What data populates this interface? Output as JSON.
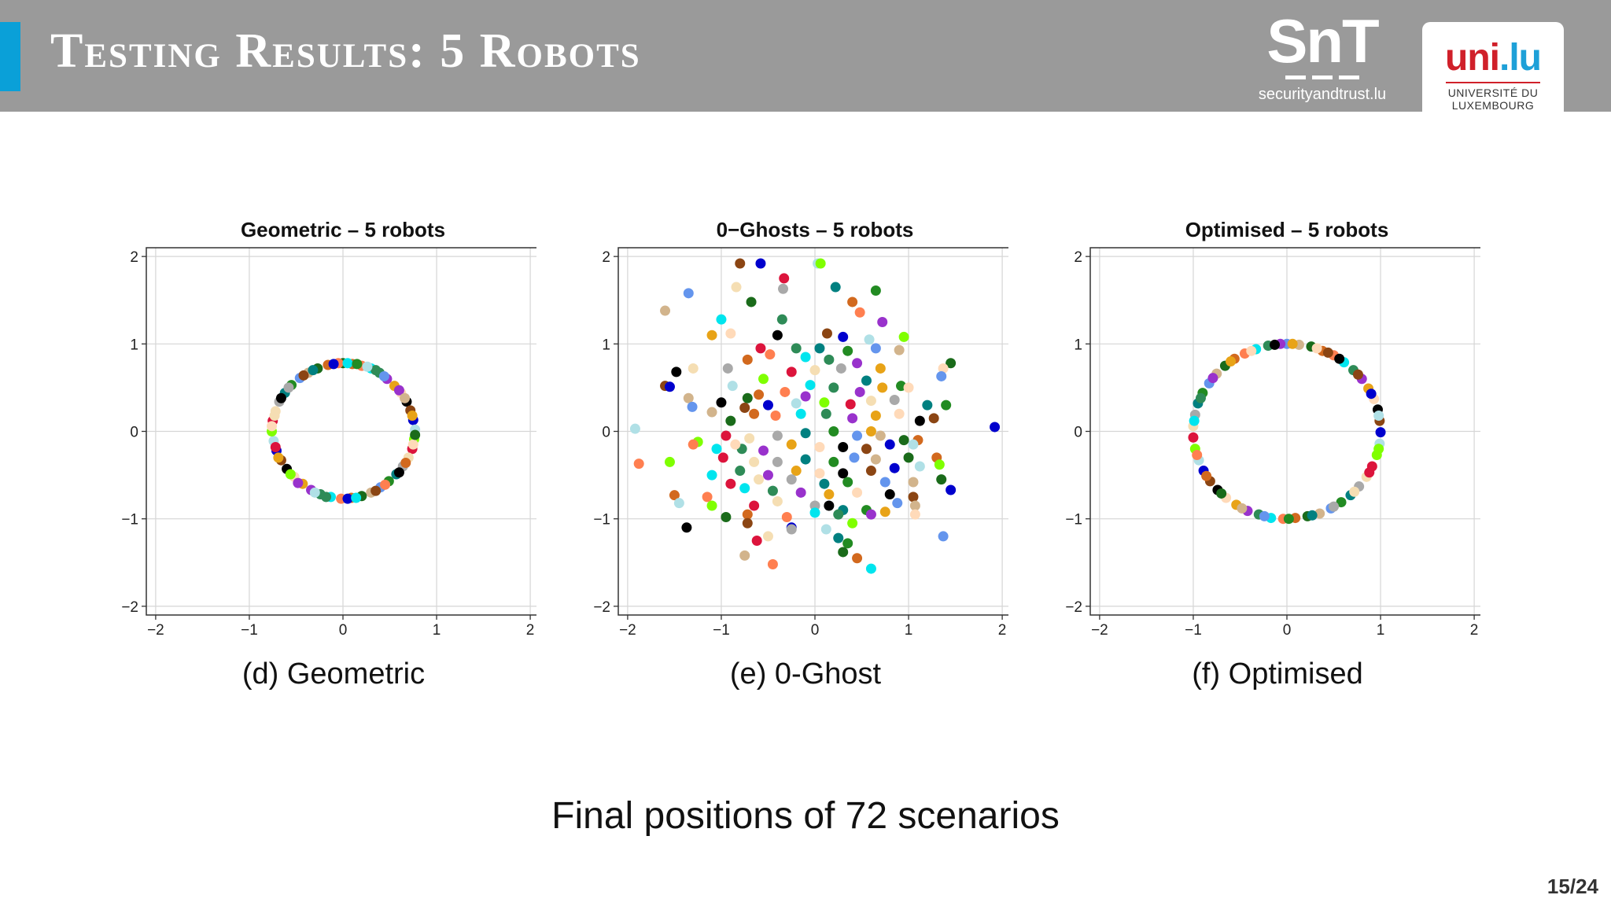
{
  "header": {
    "title": "Testing Results: 5 Robots",
    "snt_logo": "SnT",
    "snt_url": "securityandtrust.lu",
    "uni_logo_a": "uni",
    "uni_logo_b": ".lu",
    "uni_name_1": "UNIVERSITÉ DU",
    "uni_name_2": "LUXEMBOURG"
  },
  "captions": {
    "d": "(d)  Geometric",
    "e": "(e)  0-Ghost",
    "f": "(f)  Optimised"
  },
  "bottom_text": "Final positions of 72 scenarios",
  "page_number": "15/24",
  "palette": [
    "#1a6b1a",
    "#00e5ee",
    "#e8a317",
    "#8b4513",
    "#7fff00",
    "#a9a9a9",
    "#6495ed",
    "#d2691e",
    "#2e8b57",
    "#ffdab9",
    "#0000cd",
    "#dc143c",
    "#008080",
    "#d2b48c",
    "#ff7f50",
    "#9932cc",
    "#000000",
    "#b0e0e6",
    "#f5deb3",
    "#228b22"
  ],
  "chart_data": [
    {
      "type": "scatter",
      "title": "Geometric – 5 robots",
      "xlim": [
        -2.1,
        2.1
      ],
      "ylim": [
        -2.1,
        2.1
      ],
      "xticks": [
        "−2",
        "−1",
        "0",
        "1",
        "2"
      ],
      "yticks": [
        "−2",
        "−1",
        "0",
        "1",
        "2"
      ],
      "grid": true,
      "points": [
        [
          0.0,
          0.78
        ],
        [
          0.1,
          0.77
        ],
        [
          0.2,
          0.75
        ],
        [
          0.3,
          0.72
        ],
        [
          0.39,
          0.67
        ],
        [
          0.47,
          0.6
        ],
        [
          0.55,
          0.52
        ],
        [
          0.62,
          0.44
        ],
        [
          0.68,
          0.34
        ],
        [
          0.72,
          0.24
        ],
        [
          0.75,
          0.13
        ],
        [
          0.77,
          0.02
        ],
        [
          0.76,
          -0.09
        ],
        [
          0.74,
          -0.2
        ],
        [
          0.7,
          -0.3
        ],
        [
          0.64,
          -0.4
        ],
        [
          0.57,
          -0.49
        ],
        [
          0.49,
          -0.57
        ],
        [
          0.4,
          -0.64
        ],
        [
          0.3,
          -0.7
        ],
        [
          0.2,
          -0.74
        ],
        [
          0.09,
          -0.76
        ],
        [
          -0.02,
          -0.77
        ],
        [
          -0.13,
          -0.75
        ],
        [
          -0.24,
          -0.72
        ],
        [
          -0.34,
          -0.67
        ],
        [
          -0.43,
          -0.6
        ],
        [
          -0.52,
          -0.52
        ],
        [
          -0.6,
          -0.43
        ],
        [
          -0.66,
          -0.33
        ],
        [
          -0.71,
          -0.22
        ],
        [
          -0.74,
          -0.11
        ],
        [
          -0.76,
          0.0
        ],
        [
          -0.75,
          0.12
        ],
        [
          -0.72,
          0.23
        ],
        [
          -0.68,
          0.34
        ],
        [
          -0.62,
          0.44
        ],
        [
          -0.55,
          0.53
        ],
        [
          -0.46,
          0.61
        ],
        [
          -0.37,
          0.67
        ],
        [
          -0.27,
          0.72
        ],
        [
          -0.16,
          0.76
        ],
        [
          -0.05,
          0.78
        ],
        [
          0.05,
          0.78
        ],
        [
          0.35,
          0.7
        ],
        [
          0.6,
          0.47
        ],
        [
          0.74,
          0.18
        ],
        [
          0.75,
          -0.15
        ],
        [
          0.6,
          -0.47
        ],
        [
          0.35,
          -0.68
        ],
        [
          0.05,
          -0.77
        ],
        [
          -0.3,
          -0.7
        ],
        [
          -0.56,
          -0.49
        ],
        [
          -0.72,
          -0.18
        ],
        [
          -0.73,
          0.18
        ],
        [
          -0.58,
          0.5
        ],
        [
          -0.32,
          0.7
        ],
        [
          0.15,
          0.77
        ],
        [
          0.44,
          0.63
        ],
        [
          0.66,
          0.38
        ],
        [
          0.77,
          -0.04
        ],
        [
          0.67,
          -0.36
        ],
        [
          0.45,
          -0.61
        ],
        [
          0.14,
          -0.76
        ],
        [
          -0.18,
          -0.75
        ],
        [
          -0.48,
          -0.59
        ],
        [
          -0.69,
          -0.3
        ],
        [
          -0.76,
          0.06
        ],
        [
          -0.66,
          0.38
        ],
        [
          -0.42,
          0.64
        ],
        [
          -0.1,
          0.77
        ],
        [
          0.26,
          0.74
        ]
      ]
    },
    {
      "type": "scatter",
      "title": "0−Ghosts – 5 robots",
      "xlim": [
        -2.1,
        2.1
      ],
      "ylim": [
        -2.1,
        2.1
      ],
      "xticks": [
        "−2",
        "−1",
        "0",
        "1",
        "2"
      ],
      "yticks": [
        "−2",
        "−1",
        "0",
        "1",
        "2"
      ],
      "grid": true,
      "points": [
        [
          -0.8,
          1.92
        ],
        [
          -0.58,
          1.92
        ],
        [
          0.03,
          1.92
        ],
        [
          0.06,
          1.92
        ],
        [
          -0.33,
          1.75
        ],
        [
          -0.84,
          1.65
        ],
        [
          -0.34,
          1.63
        ],
        [
          0.22,
          1.65
        ],
        [
          0.65,
          1.61
        ],
        [
          -1.35,
          1.58
        ],
        [
          -1.6,
          1.38
        ],
        [
          -0.68,
          1.48
        ],
        [
          0.4,
          1.48
        ],
        [
          0.48,
          1.36
        ],
        [
          -1.0,
          1.28
        ],
        [
          -0.35,
          1.28
        ],
        [
          0.72,
          1.25
        ],
        [
          -1.1,
          1.1
        ],
        [
          -0.9,
          1.12
        ],
        [
          -0.4,
          1.1
        ],
        [
          0.13,
          1.12
        ],
        [
          0.3,
          1.08
        ],
        [
          0.58,
          1.05
        ],
        [
          0.95,
          1.08
        ],
        [
          -0.58,
          0.95
        ],
        [
          -1.3,
          0.72
        ],
        [
          -0.93,
          0.72
        ],
        [
          0.05,
          0.95
        ],
        [
          0.35,
          0.92
        ],
        [
          0.65,
          0.95
        ],
        [
          0.9,
          0.93
        ],
        [
          1.45,
          0.78
        ],
        [
          -0.72,
          0.82
        ],
        [
          -0.48,
          0.88
        ],
        [
          -0.1,
          0.85
        ],
        [
          0.15,
          0.82
        ],
        [
          0.45,
          0.78
        ],
        [
          0.7,
          0.72
        ],
        [
          1.37,
          0.72
        ],
        [
          -1.48,
          0.68
        ],
        [
          -1.6,
          0.52
        ],
        [
          -1.55,
          0.51
        ],
        [
          -0.88,
          0.52
        ],
        [
          -0.55,
          0.6
        ],
        [
          -0.25,
          0.68
        ],
        [
          0.0,
          0.7
        ],
        [
          0.28,
          0.72
        ],
        [
          0.55,
          0.58
        ],
        [
          0.92,
          0.52
        ],
        [
          1.35,
          0.63
        ],
        [
          -1.35,
          0.38
        ],
        [
          -0.72,
          0.38
        ],
        [
          -0.6,
          0.42
        ],
        [
          -0.32,
          0.45
        ],
        [
          -0.05,
          0.53
        ],
        [
          0.2,
          0.5
        ],
        [
          0.48,
          0.45
        ],
        [
          0.72,
          0.5
        ],
        [
          1.0,
          0.5
        ],
        [
          -1.0,
          0.33
        ],
        [
          -0.75,
          0.27
        ],
        [
          -0.5,
          0.3
        ],
        [
          -0.2,
          0.32
        ],
        [
          0.1,
          0.33
        ],
        [
          0.38,
          0.31
        ],
        [
          0.6,
          0.35
        ],
        [
          0.85,
          0.36
        ],
        [
          1.2,
          0.3
        ],
        [
          1.4,
          0.3
        ],
        [
          -1.31,
          0.28
        ],
        [
          -1.1,
          0.22
        ],
        [
          -0.9,
          0.12
        ],
        [
          -0.65,
          0.2
        ],
        [
          -0.42,
          0.18
        ],
        [
          -0.15,
          0.2
        ],
        [
          0.12,
          0.2
        ],
        [
          0.4,
          0.15
        ],
        [
          0.65,
          0.18
        ],
        [
          0.9,
          0.2
        ],
        [
          1.12,
          0.12
        ],
        [
          1.27,
          0.15
        ],
        [
          1.92,
          0.05
        ],
        [
          -1.92,
          0.03
        ],
        [
          -1.25,
          -0.12
        ],
        [
          -0.95,
          -0.05
        ],
        [
          -0.7,
          -0.08
        ],
        [
          -0.4,
          -0.05
        ],
        [
          -0.1,
          -0.02
        ],
        [
          0.2,
          0.0
        ],
        [
          0.45,
          -0.05
        ],
        [
          0.7,
          -0.05
        ],
        [
          0.95,
          -0.1
        ],
        [
          1.1,
          -0.1
        ],
        [
          -1.3,
          -0.15
        ],
        [
          -1.05,
          -0.2
        ],
        [
          -0.78,
          -0.2
        ],
        [
          -0.55,
          -0.22
        ],
        [
          -0.25,
          -0.15
        ],
        [
          0.05,
          -0.18
        ],
        [
          0.3,
          -0.18
        ],
        [
          0.55,
          -0.2
        ],
        [
          0.8,
          -0.15
        ],
        [
          1.05,
          -0.15
        ],
        [
          -1.55,
          -0.35
        ],
        [
          -0.98,
          -0.3
        ],
        [
          -0.65,
          -0.35
        ],
        [
          -0.4,
          -0.35
        ],
        [
          -0.1,
          -0.32
        ],
        [
          0.2,
          -0.35
        ],
        [
          0.42,
          -0.3
        ],
        [
          0.65,
          -0.32
        ],
        [
          1.0,
          -0.3
        ],
        [
          1.3,
          -0.3
        ],
        [
          -1.88,
          -0.37
        ],
        [
          -1.1,
          -0.5
        ],
        [
          -0.8,
          -0.45
        ],
        [
          -0.5,
          -0.5
        ],
        [
          -0.2,
          -0.45
        ],
        [
          0.05,
          -0.48
        ],
        [
          0.3,
          -0.48
        ],
        [
          0.6,
          -0.45
        ],
        [
          0.85,
          -0.42
        ],
        [
          1.12,
          -0.4
        ],
        [
          1.33,
          -0.38
        ],
        [
          -0.9,
          -0.6
        ],
        [
          -0.6,
          -0.55
        ],
        [
          -0.25,
          -0.55
        ],
        [
          0.1,
          -0.6
        ],
        [
          0.35,
          -0.58
        ],
        [
          0.75,
          -0.58
        ],
        [
          1.05,
          -0.58
        ],
        [
          1.35,
          -0.55
        ],
        [
          -1.5,
          -0.73
        ],
        [
          -1.15,
          -0.75
        ],
        [
          -0.75,
          -0.65
        ],
        [
          -0.45,
          -0.68
        ],
        [
          -0.15,
          -0.7
        ],
        [
          0.15,
          -0.72
        ],
        [
          0.45,
          -0.7
        ],
        [
          0.8,
          -0.72
        ],
        [
          1.05,
          -0.75
        ],
        [
          1.45,
          -0.67
        ],
        [
          -1.45,
          -0.82
        ],
        [
          -1.1,
          -0.85
        ],
        [
          -0.65,
          -0.85
        ],
        [
          -0.4,
          -0.8
        ],
        [
          0.0,
          -0.85
        ],
        [
          0.3,
          -0.9
        ],
        [
          0.55,
          -0.9
        ],
        [
          0.88,
          -0.82
        ],
        [
          1.07,
          -0.85
        ],
        [
          -0.95,
          -0.98
        ],
        [
          -0.72,
          -0.95
        ],
        [
          -0.3,
          -0.98
        ],
        [
          0.0,
          -0.93
        ],
        [
          0.25,
          -0.95
        ],
        [
          0.6,
          -0.95
        ],
        [
          0.75,
          -0.92
        ],
        [
          1.07,
          -0.95
        ],
        [
          -1.37,
          -1.1
        ],
        [
          -0.72,
          -1.05
        ],
        [
          -0.25,
          -1.1
        ],
        [
          0.12,
          -1.12
        ],
        [
          0.4,
          -1.05
        ],
        [
          -0.62,
          -1.25
        ],
        [
          -0.5,
          -1.2
        ],
        [
          -0.25,
          -1.12
        ],
        [
          0.25,
          -1.22
        ],
        [
          0.35,
          -1.28
        ],
        [
          1.37,
          -1.2
        ],
        [
          -0.75,
          -1.42
        ],
        [
          0.3,
          -1.38
        ],
        [
          0.45,
          -1.45
        ],
        [
          -0.45,
          -1.52
        ],
        [
          0.6,
          -1.57
        ],
        [
          -0.2,
          0.95
        ],
        [
          -0.1,
          0.4
        ],
        [
          0.6,
          0.0
        ],
        [
          -0.85,
          -0.15
        ],
        [
          0.15,
          -0.85
        ]
      ]
    },
    {
      "type": "scatter",
      "title": "Optimised – 5 robots",
      "xlim": [
        -2.1,
        2.1
      ],
      "ylim": [
        -2.1,
        2.1
      ],
      "xticks": [
        "−2",
        "−1",
        "0",
        "1",
        "2"
      ],
      "yticks": [
        "−2",
        "−1",
        "0",
        "1",
        "2"
      ],
      "grid": true,
      "points": [
        [
          0.0,
          1.0
        ],
        [
          0.13,
          0.99
        ],
        [
          0.26,
          0.97
        ],
        [
          0.38,
          0.92
        ],
        [
          0.5,
          0.87
        ],
        [
          0.61,
          0.79
        ],
        [
          0.71,
          0.7
        ],
        [
          0.8,
          0.6
        ],
        [
          0.87,
          0.49
        ],
        [
          0.93,
          0.37
        ],
        [
          0.97,
          0.25
        ],
        [
          0.99,
          0.12
        ],
        [
          1.0,
          -0.01
        ],
        [
          0.99,
          -0.14
        ],
        [
          0.96,
          -0.27
        ],
        [
          0.91,
          -0.4
        ],
        [
          0.85,
          -0.52
        ],
        [
          0.77,
          -0.63
        ],
        [
          0.68,
          -0.73
        ],
        [
          0.58,
          -0.81
        ],
        [
          0.47,
          -0.88
        ],
        [
          0.35,
          -0.94
        ],
        [
          0.22,
          -0.97
        ],
        [
          0.09,
          -0.99
        ],
        [
          -0.04,
          -1.0
        ],
        [
          -0.17,
          -0.99
        ],
        [
          -0.3,
          -0.95
        ],
        [
          -0.42,
          -0.91
        ],
        [
          -0.54,
          -0.84
        ],
        [
          -0.65,
          -0.76
        ],
        [
          -0.74,
          -0.67
        ],
        [
          -0.82,
          -0.57
        ],
        [
          -0.89,
          -0.45
        ],
        [
          -0.94,
          -0.33
        ],
        [
          -0.98,
          -0.2
        ],
        [
          -1.0,
          -0.07
        ],
        [
          -1.0,
          0.06
        ],
        [
          -0.98,
          0.19
        ],
        [
          -0.95,
          0.32
        ],
        [
          -0.9,
          0.44
        ],
        [
          -0.83,
          0.55
        ],
        [
          -0.75,
          0.66
        ],
        [
          -0.66,
          0.75
        ],
        [
          -0.56,
          0.83
        ],
        [
          -0.45,
          0.89
        ],
        [
          -0.33,
          0.94
        ],
        [
          -0.2,
          0.98
        ],
        [
          -0.07,
          1.0
        ],
        [
          0.06,
          1.0
        ],
        [
          0.32,
          0.95
        ],
        [
          0.56,
          0.83
        ],
        [
          0.76,
          0.65
        ],
        [
          0.9,
          0.43
        ],
        [
          0.98,
          0.18
        ],
        [
          0.98,
          -0.2
        ],
        [
          0.88,
          -0.47
        ],
        [
          0.72,
          -0.69
        ],
        [
          0.5,
          -0.86
        ],
        [
          0.27,
          -0.96
        ],
        [
          0.02,
          -1.0
        ],
        [
          -0.24,
          -0.97
        ],
        [
          -0.48,
          -0.88
        ],
        [
          -0.7,
          -0.71
        ],
        [
          -0.86,
          -0.51
        ],
        [
          -0.96,
          -0.27
        ],
        [
          -0.99,
          0.12
        ],
        [
          -0.92,
          0.38
        ],
        [
          -0.79,
          0.61
        ],
        [
          -0.6,
          0.8
        ],
        [
          -0.38,
          0.92
        ],
        [
          -0.13,
          0.99
        ],
        [
          0.44,
          0.9
        ]
      ]
    }
  ]
}
